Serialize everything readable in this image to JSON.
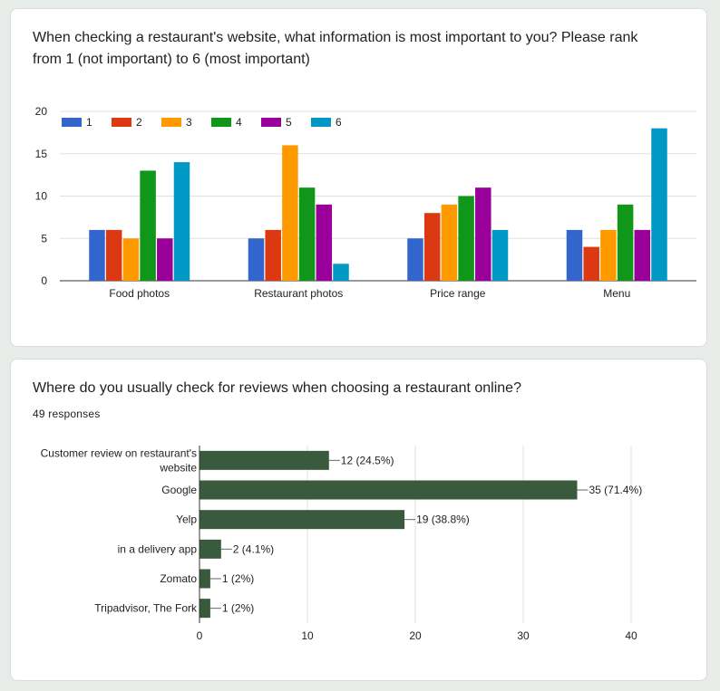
{
  "colors": {
    "series": [
      "#3366cc",
      "#dc3912",
      "#ff9900",
      "#109618",
      "#990099",
      "#0099c6"
    ],
    "hbar": "#3a5a3e",
    "grid": "#e0e0e0",
    "axis": "#333333"
  },
  "card1": {
    "title": "When checking a restaurant's website, what information is most important to you? Please rank from 1 (not important) to 6 (most important)"
  },
  "card2": {
    "title": "Where do you usually check for reviews when choosing a restaurant online?",
    "responses": "49 responses"
  },
  "chart_data": [
    {
      "type": "bar",
      "title": "When checking a restaurant's website, what information is most important to you? Please rank from 1 (not important) to 6 (most important)",
      "categories": [
        "Food photos",
        "Restaurant photos",
        "Price range",
        "Menu"
      ],
      "series": [
        {
          "name": "1",
          "values": [
            6,
            5,
            5,
            6
          ]
        },
        {
          "name": "2",
          "values": [
            6,
            6,
            8,
            4
          ]
        },
        {
          "name": "3",
          "values": [
            5,
            16,
            9,
            6
          ]
        },
        {
          "name": "4",
          "values": [
            13,
            11,
            10,
            9
          ]
        },
        {
          "name": "5",
          "values": [
            5,
            9,
            11,
            6
          ]
        },
        {
          "name": "6",
          "values": [
            14,
            2,
            6,
            18
          ]
        }
      ],
      "yticks": [
        "0",
        "5",
        "10",
        "15",
        "20"
      ],
      "ylim": [
        0,
        20
      ],
      "legend": "top-left",
      "grid": true
    },
    {
      "type": "bar",
      "orientation": "horizontal",
      "title": "Where do you usually check for reviews when choosing a restaurant online?",
      "categories": [
        [
          "Customer review on restaurant's",
          "website"
        ],
        [
          "Google"
        ],
        [
          "Yelp"
        ],
        [
          "in a delivery app"
        ],
        [
          "Zomato"
        ],
        [
          "Tripadvisor, The Fork"
        ]
      ],
      "values": [
        12,
        35,
        19,
        2,
        1,
        1
      ],
      "labels": [
        "12 (24.5%)",
        "35 (71.4%)",
        "19 (38.8%)",
        "2 (4.1%)",
        "1 (2%)",
        "1 (2%)"
      ],
      "xticks": [
        "0",
        "10",
        "20",
        "30",
        "40"
      ],
      "xlim": [
        0,
        40
      ],
      "grid": true
    }
  ]
}
